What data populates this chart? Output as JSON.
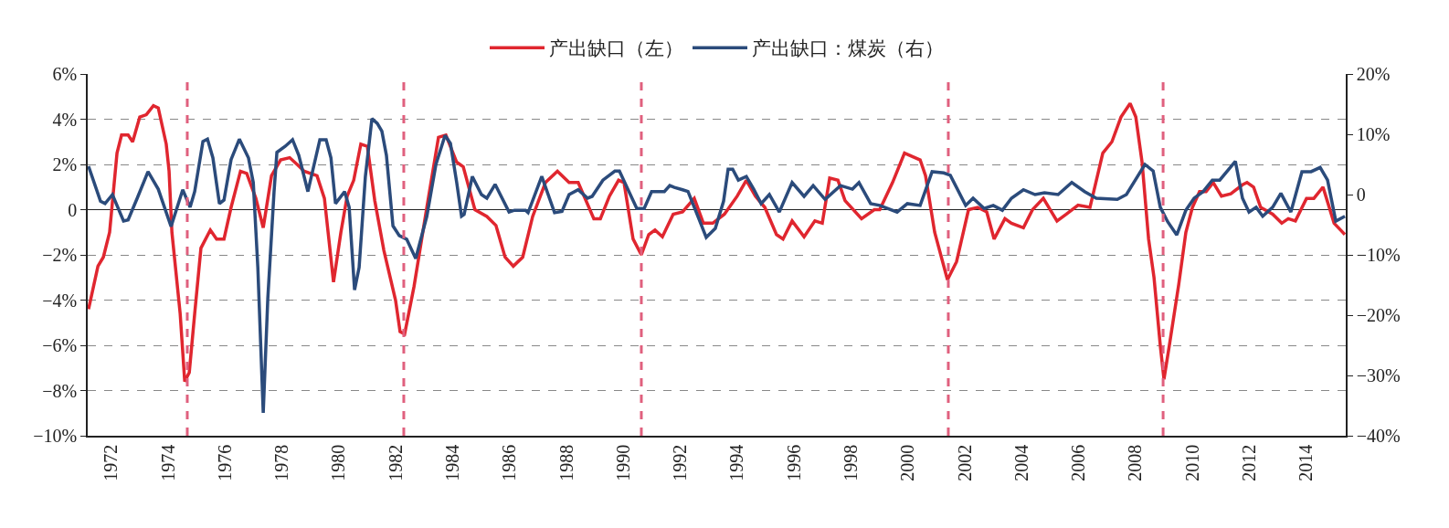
{
  "chart_data": {
    "type": "line",
    "x": [
      1971.7,
      1972.03,
      1972.22,
      1972.44,
      1972.7,
      1972.86,
      1973.09,
      1973.25,
      1973.5,
      1973.73,
      1973.98,
      1974.15,
      1974.43,
      1974.53,
      1974.63,
      1974.92,
      1975.08,
      1975.24,
      1975.43,
      1975.65,
      1975.98,
      1976.2,
      1976.46,
      1976.71,
      1977.04,
      1977.26,
      1977.58,
      1977.84,
      1978.13,
      1978.45,
      1978.77,
      1979.03,
      1979.28,
      1979.73,
      1979.99,
      1980.31,
      1980.57,
      1980.79,
      1981.02,
      1981.27,
      1981.5,
      1981.76,
      1982.08,
      1982.49,
      1982.65,
      1982.81,
      1983.14,
      1983.59,
      1984.0,
      1984.26,
      1984.64,
      1984.87,
      1985.28,
      1985.7,
      1986.02,
      1986.34,
      1986.63,
      1986.96,
      1987.31,
      1987.76,
      1988.18,
      1988.59,
      1988.91,
      1989.46,
      1989.69,
      1990.01,
      1990.33,
      1990.52,
      1990.84,
      1991.13,
      1991.39,
      1991.61,
      1991.87,
      1992.25,
      1992.58,
      1992.99,
      1993.31,
      1993.64,
      1994.05,
      1994.5,
      1994.82,
      1995.14,
      1995.47,
      1995.88,
      1996.11,
      1996.43,
      1996.85,
      1997.23,
      1997.49,
      1997.75,
      1998.04,
      1998.29,
      1998.87,
      1999.32,
      1999.51,
      1999.96,
      2000.38,
      2000.93,
      2001.12,
      2001.44,
      2001.89,
      2002.21,
      2002.63,
      2002.95,
      2003.27,
      2003.53,
      2003.91,
      2004.14,
      2004.56,
      2004.88,
      2005.26,
      2005.74,
      2006.07,
      2006.48,
      2006.9,
      2007.35,
      2007.67,
      2007.99,
      2008.31,
      2008.51,
      2008.73,
      2008.96,
      2009.15,
      2009.37,
      2009.5,
      2009.69,
      2010.02,
      2010.27,
      2010.5,
      2010.75,
      2010.98,
      2011.23,
      2011.52,
      2011.85,
      2012.26,
      2012.42,
      2012.65,
      2012.9,
      2013.32,
      2013.64,
      2013.87,
      2014.12,
      2014.51,
      2014.77,
      2015.09,
      2015.48,
      2015.86
    ],
    "series": [
      {
        "name": "产出缺口（左）",
        "color": "#e0262f",
        "values": [
          -4.4,
          -2.5,
          -2.1,
          -1.0,
          2.5,
          3.3,
          3.3,
          3.0,
          4.1,
          4.2,
          4.6,
          4.5,
          2.9,
          1.7,
          -1.0,
          -4.6,
          -7.6,
          -7.2,
          -4.6,
          -1.7,
          -0.9,
          -1.3,
          -1.3,
          0.1,
          1.7,
          1.6,
          0.5,
          -0.8,
          1.5,
          2.2,
          2.3,
          2.0,
          1.7,
          1.5,
          0.5,
          -3.2,
          -1.0,
          0.6,
          1.3,
          2.9,
          2.8,
          0.4,
          -1.8,
          -4.0,
          -5.4,
          -5.5,
          -3.4,
          0.1,
          3.2,
          3.3,
          2.1,
          1.9,
          0.0,
          -0.3,
          -0.7,
          -2.1,
          -2.5,
          -2.1,
          -0.3,
          1.2,
          1.7,
          1.2,
          1.2,
          -0.4,
          -0.4,
          0.6,
          1.3,
          1.2,
          -1.3,
          -2.0,
          -1.1,
          -0.9,
          -1.2,
          -0.2,
          -0.1,
          0.5,
          -0.6,
          -0.6,
          -0.2,
          0.6,
          1.3,
          0.6,
          0.1,
          -1.1,
          -1.3,
          -0.5,
          -1.2,
          -0.5,
          -0.6,
          1.4,
          1.3,
          0.4,
          -0.4,
          0.0,
          0.0,
          1.2,
          2.5,
          2.2,
          1.5,
          -1.0,
          -3.1,
          -2.3,
          0.0,
          0.1,
          -0.1,
          -1.3,
          -0.4,
          -0.6,
          -0.8,
          0.0,
          0.5,
          -0.5,
          -0.2,
          0.2,
          0.1,
          2.5,
          3.0,
          4.1,
          4.7,
          4.1,
          2.1,
          -1.3,
          -3.0,
          -6.0,
          -7.5,
          -6.0,
          -3.3,
          -1.0,
          0.1,
          0.8,
          0.8,
          1.2,
          0.6,
          0.7,
          1.1,
          1.2,
          1.0,
          0.1,
          -0.2,
          -0.6,
          -0.4,
          -0.5,
          0.5,
          0.5,
          1.0,
          -0.6,
          -1.1
        ]
      },
      {
        "name": "产出缺口：煤炭（右）",
        "color": "#2b4b7b",
        "axis": "y2",
        "x": [
          1971.7,
          1972.12,
          1972.28,
          1972.54,
          1972.93,
          1973.09,
          1973.41,
          1973.79,
          1974.15,
          1974.6,
          1975.01,
          1975.27,
          1975.43,
          1975.72,
          1975.88,
          1976.07,
          1976.3,
          1976.46,
          1976.71,
          1977.0,
          1977.32,
          1977.49,
          1977.65,
          1977.84,
          1978.0,
          1978.22,
          1978.32,
          1978.61,
          1978.87,
          1979.09,
          1979.41,
          1979.83,
          1980.05,
          1980.22,
          1980.38,
          1980.7,
          1980.86,
          1981.05,
          1981.21,
          1981.43,
          1981.66,
          1981.85,
          1982.01,
          1982.17,
          1982.4,
          1982.62,
          1982.88,
          1983.2,
          1983.59,
          1983.91,
          1984.23,
          1984.42,
          1984.64,
          1984.81,
          1984.9,
          1985.19,
          1985.51,
          1985.7,
          1985.99,
          1986.48,
          1986.67,
          1987.06,
          1987.15,
          1987.63,
          1988.08,
          1988.34,
          1988.59,
          1988.91,
          1989.24,
          1989.4,
          1989.78,
          1990.2,
          1990.36,
          1990.97,
          1991.23,
          1991.49,
          1991.94,
          1992.13,
          1992.29,
          1992.58,
          1992.77,
          1993.16,
          1993.41,
          1993.73,
          1994.02,
          1994.18,
          1994.34,
          1994.54,
          1994.82,
          1995.08,
          1995.34,
          1995.63,
          1995.98,
          1996.43,
          1996.85,
          1997.17,
          1997.59,
          1998.13,
          1998.55,
          1998.78,
          1999.19,
          1999.51,
          2000.12,
          2000.48,
          2000.93,
          2001.35,
          2001.76,
          2001.99,
          2002.53,
          2002.79,
          2003.18,
          2003.5,
          2003.82,
          2004.14,
          2004.56,
          2004.97,
          2005.3,
          2005.78,
          2006.26,
          2006.71,
          2007.12,
          2007.86,
          2008.18,
          2008.83,
          2009.12,
          2009.37,
          2009.63,
          2009.95,
          2010.27,
          2010.56,
          2010.88,
          2011.2,
          2011.46,
          2012.01,
          2012.26,
          2012.49,
          2012.74,
          2012.97,
          2013.32,
          2013.61,
          2013.96,
          2014.35,
          2014.67,
          2014.99,
          2015.25,
          2015.54,
          2015.86
        ],
        "values": [
          4.7,
          -1.1,
          -1.5,
          0.0,
          -4.4,
          -4.2,
          -0.6,
          3.8,
          0.9,
          -5.3,
          0.8,
          -2.1,
          0.5,
          8.8,
          9.2,
          6.1,
          -1.5,
          -0.9,
          5.8,
          9.2,
          6.1,
          2.0,
          -12.1,
          -36.2,
          -17.3,
          0.5,
          7.0,
          8.0,
          9.1,
          6.5,
          0.5,
          9.1,
          9.1,
          6.1,
          -1.5,
          0.5,
          -2.1,
          -15.8,
          -12.1,
          3.0,
          12.6,
          11.8,
          10.5,
          6.5,
          -5.2,
          -6.8,
          -7.4,
          -10.6,
          -3.6,
          5.0,
          9.8,
          8.5,
          2.0,
          -3.6,
          -3.3,
          3.0,
          0.0,
          -0.6,
          1.7,
          -2.9,
          -2.6,
          -2.6,
          -3.0,
          3.0,
          -3.0,
          -2.8,
          0.0,
          0.8,
          -0.6,
          -0.3,
          2.4,
          3.9,
          3.9,
          -2.3,
          -2.3,
          0.5,
          0.5,
          1.5,
          1.2,
          0.8,
          0.5,
          -4.1,
          -7.1,
          -5.6,
          -1.1,
          4.2,
          4.2,
          2.4,
          3.0,
          0.9,
          -1.5,
          0.0,
          -2.9,
          2.0,
          -0.3,
          1.5,
          -0.8,
          1.5,
          0.9,
          2.0,
          -1.5,
          -1.8,
          -2.9,
          -1.5,
          -1.8,
          3.8,
          3.6,
          3.2,
          -1.8,
          -0.6,
          -2.3,
          -1.8,
          -2.6,
          -0.6,
          0.8,
          0.0,
          0.3,
          0.0,
          2.0,
          0.5,
          -0.6,
          -0.8,
          0.0,
          5.0,
          3.9,
          -2.1,
          -4.5,
          -6.7,
          -2.6,
          -0.6,
          0.5,
          2.4,
          2.4,
          5.5,
          -0.6,
          -2.9,
          -2.1,
          -3.6,
          -2.1,
          0.2,
          -2.9,
          3.8,
          3.8,
          4.5,
          2.4,
          -4.4,
          -3.6
        ]
      }
    ],
    "xlim": [
      1971.67,
      2015.89
    ],
    "xticks": [
      {
        "value": 1972.5,
        "label": "1972"
      },
      {
        "value": 1974.5,
        "label": "1974"
      },
      {
        "value": 1976.5,
        "label": "1976"
      },
      {
        "value": 1978.5,
        "label": "1978"
      },
      {
        "value": 1980.5,
        "label": "1980"
      },
      {
        "value": 1982.5,
        "label": "1982"
      },
      {
        "value": 1984.5,
        "label": "1984"
      },
      {
        "value": 1986.5,
        "label": "1986"
      },
      {
        "value": 1988.5,
        "label": "1988"
      },
      {
        "value": 1990.5,
        "label": "1990"
      },
      {
        "value": 1992.5,
        "label": "1992"
      },
      {
        "value": 1994.5,
        "label": "1994"
      },
      {
        "value": 1996.5,
        "label": "1996"
      },
      {
        "value": 1998.5,
        "label": "1998"
      },
      {
        "value": 2000.5,
        "label": "2000"
      },
      {
        "value": 2002.5,
        "label": "2002"
      },
      {
        "value": 2004.5,
        "label": "2004"
      },
      {
        "value": 2006.5,
        "label": "2006"
      },
      {
        "value": 2008.5,
        "label": "2008"
      },
      {
        "value": 2010.5,
        "label": "2010"
      },
      {
        "value": 2012.5,
        "label": "2012"
      },
      {
        "value": 2014.5,
        "label": "2014"
      }
    ],
    "ylim": [
      -10,
      6
    ],
    "yticks": [
      {
        "value": -10,
        "label": "−10%"
      },
      {
        "value": -8,
        "label": "−8%"
      },
      {
        "value": -6,
        "label": "−6%"
      },
      {
        "value": -4,
        "label": "−4%"
      },
      {
        "value": -2,
        "label": "−2%"
      },
      0,
      {
        "value": 2,
        "label": "2%"
      },
      {
        "value": 4,
        "label": "4%"
      },
      {
        "value": 6,
        "label": "6%"
      }
    ],
    "y2lim": [
      -40,
      20
    ],
    "y2ticks": [
      {
        "value": -40,
        "label": "−40%"
      },
      {
        "value": -30,
        "label": "−30%"
      },
      {
        "value": -20,
        "label": "−20%"
      },
      {
        "value": -10,
        "label": "−10%"
      },
      0,
      {
        "value": 10,
        "label": "10%"
      },
      {
        "value": 20,
        "label": "20%"
      }
    ],
    "ref_lines": [
      {
        "axis": "x",
        "value": 1975.17,
        "color": "#e0607e",
        "line_style": "dashed"
      },
      {
        "axis": "x",
        "value": 1982.78,
        "color": "#e0607e",
        "line_style": "dashed"
      },
      {
        "axis": "x",
        "value": 1991.13,
        "color": "#e0607e",
        "line_style": "dashed"
      },
      {
        "axis": "x",
        "value": 2001.92,
        "color": "#e0607e",
        "line_style": "dashed"
      },
      {
        "axis": "x",
        "value": 2009.47,
        "color": "#e0607e",
        "line_style": "dashed"
      }
    ],
    "grid": "y",
    "legend": "top",
    "marker": "none",
    "line_style": "solid"
  }
}
